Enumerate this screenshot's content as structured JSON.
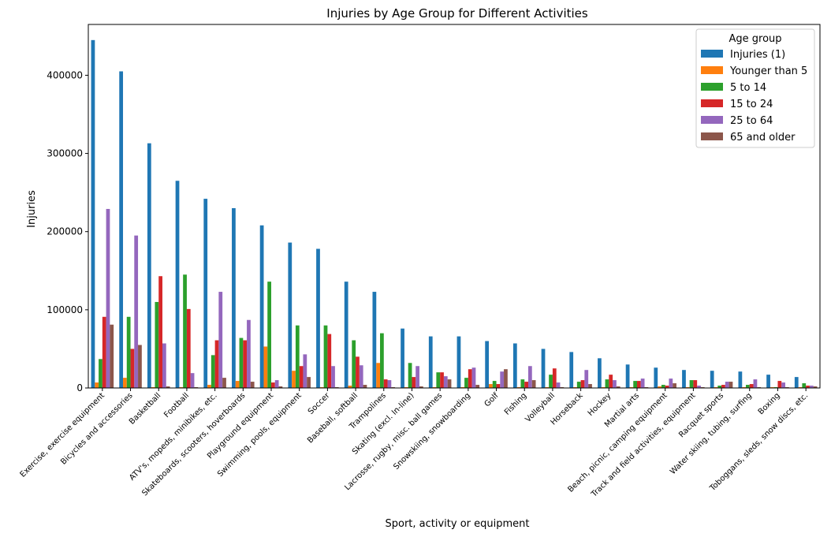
{
  "chart_data": {
    "type": "bar",
    "title": "Injuries by Age Group for Different Activities",
    "xlabel": "Sport, activity or equipment",
    "ylabel": "Injuries",
    "ylim": [
      0,
      465000
    ],
    "yticks": [
      0,
      100000,
      200000,
      300000,
      400000
    ],
    "grid": false,
    "legend": {
      "title": "Age group",
      "placement": "top-right"
    },
    "categories": [
      "Exercise, exercise equipment",
      "Bicycles and accessories",
      "Basketball",
      "Football",
      "ATV's, mopeds, minibikes, etc.",
      "Skateboards, scooters, hoverboards",
      "Playground equipment",
      "Swimming, pools, equipment",
      "Soccer",
      "Baseball, softball",
      "Trampolines",
      "Skating (excl. In-line)",
      "Lacrosse, rugby, misc. ball games",
      "Snowskiing, snowboarding",
      "Golf",
      "Fishing",
      "Volleyball",
      "Horseback",
      "Hockey",
      "Martial arts",
      "Beach, picnic, camping equipment",
      "Track and field activities, equipment",
      "Racquet sports",
      "Water skiing, tubing, surfing",
      "Boxing",
      "Toboggans, sleds, snow discs, etc."
    ],
    "series": [
      {
        "name": "Injuries (1)",
        "color": "#1f77b4",
        "values": [
          445000,
          405000,
          313000,
          265000,
          242000,
          230000,
          208000,
          186000,
          178000,
          136000,
          123000,
          76000,
          66000,
          66000,
          60000,
          57000,
          50000,
          46000,
          38000,
          30000,
          26000,
          23000,
          22000,
          21000,
          17000,
          14000
        ]
      },
      {
        "name": "Younger than 5",
        "color": "#ff7f0e",
        "values": [
          7000,
          13000,
          1000,
          1000,
          4000,
          9000,
          53000,
          22000,
          1000,
          3000,
          32000,
          1000,
          1000,
          1000,
          5000,
          1000,
          1000,
          1000,
          1000,
          1000,
          2000,
          1000,
          1000,
          1000,
          1000,
          1000
        ]
      },
      {
        "name": "5 to 14",
        "color": "#2ca02c",
        "values": [
          37000,
          91000,
          110000,
          145000,
          42000,
          64000,
          136000,
          80000,
          80000,
          61000,
          70000,
          32000,
          20000,
          13000,
          9000,
          11000,
          17000,
          8000,
          11000,
          9000,
          4000,
          10000,
          3000,
          4000,
          1000,
          6000
        ]
      },
      {
        "name": "15 to 24",
        "color": "#d62728",
        "values": [
          91000,
          50000,
          143000,
          101000,
          61000,
          61000,
          7000,
          28000,
          69000,
          40000,
          11000,
          14000,
          20000,
          24000,
          5000,
          8000,
          25000,
          10000,
          17000,
          9000,
          3000,
          10000,
          4000,
          5000,
          9000,
          3000
        ]
      },
      {
        "name": "25 to 64",
        "color": "#9467bd",
        "values": [
          229000,
          195000,
          57000,
          19000,
          123000,
          87000,
          10000,
          43000,
          28000,
          29000,
          10000,
          28000,
          15000,
          26000,
          21000,
          28000,
          7000,
          23000,
          10000,
          12000,
          12000,
          3000,
          8000,
          11000,
          7000,
          3000
        ]
      },
      {
        "name": "65 and older",
        "color": "#8c564b",
        "values": [
          81000,
          55000,
          2000,
          1000,
          13000,
          8000,
          2000,
          14000,
          1000,
          4000,
          1000,
          2000,
          11000,
          4000,
          24000,
          10000,
          1000,
          5000,
          2000,
          1000,
          6000,
          1000,
          8000,
          1000,
          1000,
          2000
        ]
      }
    ]
  }
}
